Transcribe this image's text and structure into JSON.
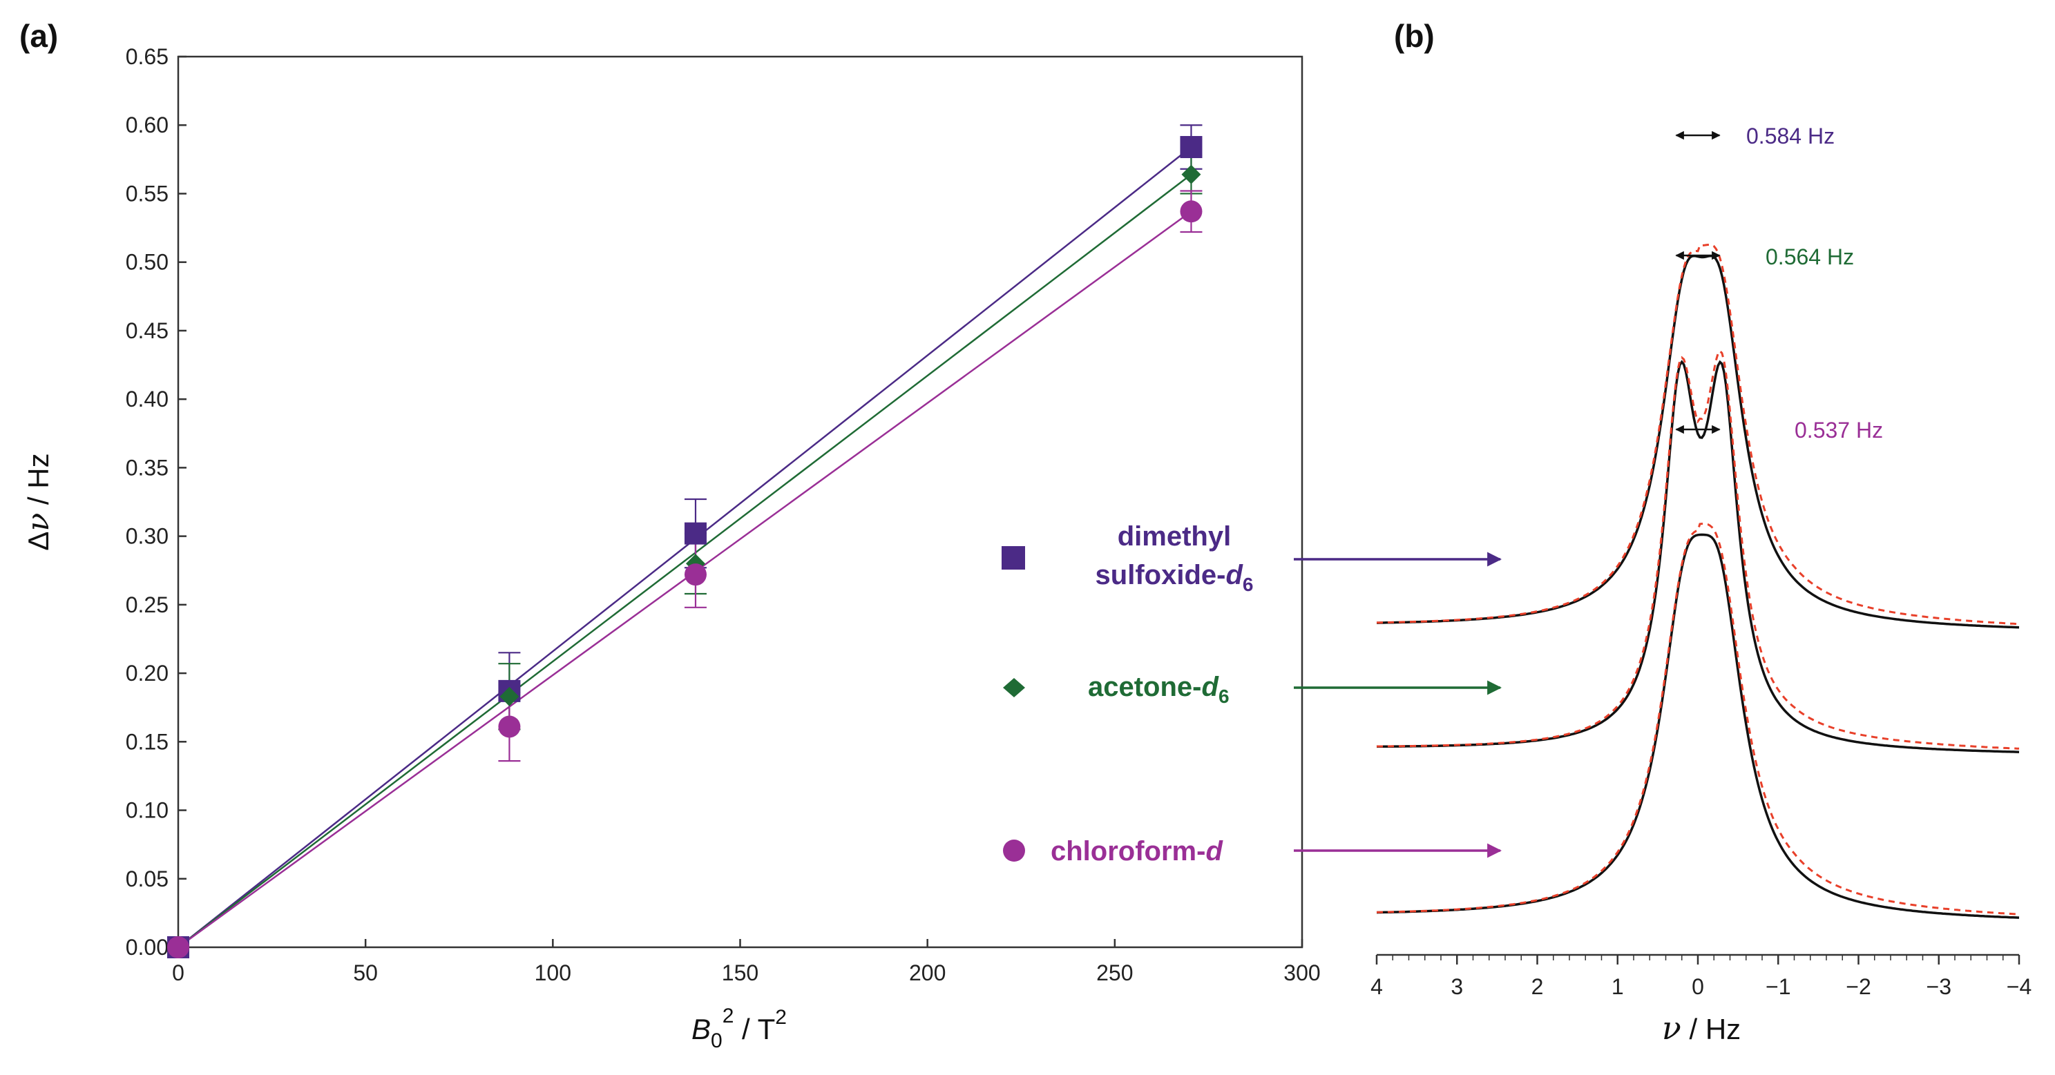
{
  "colors": {
    "dmso": "#4b2a86",
    "acetone": "#1f6b35",
    "chloroform": "#9a2f96",
    "fit_dashed": "#e8402a",
    "spectrum": "#111111",
    "axis": "#222222"
  },
  "panel_a": {
    "label": "(a)",
    "y_axis": {
      "symbol": "Δ",
      "var": "ν",
      "unit": " / Hz"
    },
    "x_axis": {
      "symbol": "B",
      "sub": "0",
      "sup1": "2",
      "mid": " / T",
      "sup2": "2"
    }
  },
  "panel_b": {
    "label": "(b)",
    "x_axis": {
      "var": "ν",
      "unit": " / Hz"
    }
  },
  "legend": {
    "dmso": {
      "line1": "dimethyl",
      "line2_prefix": "sulfoxide-",
      "line2_italic": "d",
      "line2_sub": "6"
    },
    "acetone": {
      "prefix": "acetone-",
      "italic": "d",
      "sub": "6"
    },
    "chloroform": {
      "prefix": "chloroform-",
      "italic": "d"
    }
  },
  "chart_data": [
    {
      "type": "scatter",
      "panel": "(a)",
      "xlim": [
        0,
        300
      ],
      "ylim": [
        0,
        0.65
      ],
      "xticks": [
        0,
        50,
        100,
        150,
        200,
        250,
        300
      ],
      "xtick_labels": [
        "0",
        "50",
        "100",
        "150",
        "200",
        "250",
        "300"
      ],
      "yticks": [
        0,
        0.05,
        0.1,
        0.15,
        0.2,
        0.25,
        0.3,
        0.35,
        0.4,
        0.45,
        0.5,
        0.55,
        0.6,
        0.65
      ],
      "ytick_labels": [
        "0.00",
        "0.05",
        "0.10",
        "0.15",
        "0.20",
        "0.25",
        "0.30",
        "0.35",
        "0.40",
        "0.45",
        "0.50",
        "0.55",
        "0.60",
        "0.65"
      ],
      "series": [
        {
          "name": "dimethyl sulfoxide-d6",
          "key": "dmso",
          "marker": "square",
          "x": [
            0,
            88.4,
            138.1,
            270.4
          ],
          "y": [
            0,
            0.187,
            0.302,
            0.584
          ],
          "yerr": [
            0,
            0.028,
            0.025,
            0.016
          ],
          "fit_end": [
            270.4,
            0.584
          ]
        },
        {
          "name": "acetone-d6",
          "key": "acetone",
          "marker": "diamond",
          "x": [
            0,
            88.4,
            138.1,
            270.4
          ],
          "y": [
            0,
            0.183,
            0.28,
            0.564
          ],
          "yerr": [
            0,
            0.024,
            0.022,
            0.014
          ],
          "fit_end": [
            270.4,
            0.564
          ]
        },
        {
          "name": "chloroform-d",
          "key": "chloroform",
          "marker": "circle",
          "x": [
            0,
            88.4,
            138.1,
            270.4
          ],
          "y": [
            0,
            0.161,
            0.272,
            0.537
          ],
          "yerr": [
            0,
            0.025,
            0.024,
            0.015
          ],
          "fit_end": [
            270.4,
            0.537
          ]
        }
      ]
    },
    {
      "type": "line",
      "panel": "(b)",
      "xlim": [
        4,
        -4
      ],
      "xticks": [
        4,
        3,
        2,
        1,
        0,
        -1,
        -2,
        -3,
        -4
      ],
      "xtick_labels": [
        "4",
        "3",
        "2",
        "1",
        "0",
        "−1",
        "−2",
        "−3",
        "−4"
      ],
      "series": [
        {
          "name": "dimethyl sulfoxide-d6",
          "key": "dmso",
          "splitting_label": "0.584 Hz",
          "splitting_hz": 0.584
        },
        {
          "name": "acetone-d6",
          "key": "acetone",
          "splitting_label": "0.564 Hz",
          "splitting_hz": 0.564
        },
        {
          "name": "chloroform-d",
          "key": "chloroform",
          "splitting_label": "0.537 Hz",
          "splitting_hz": 0.537
        }
      ]
    }
  ]
}
